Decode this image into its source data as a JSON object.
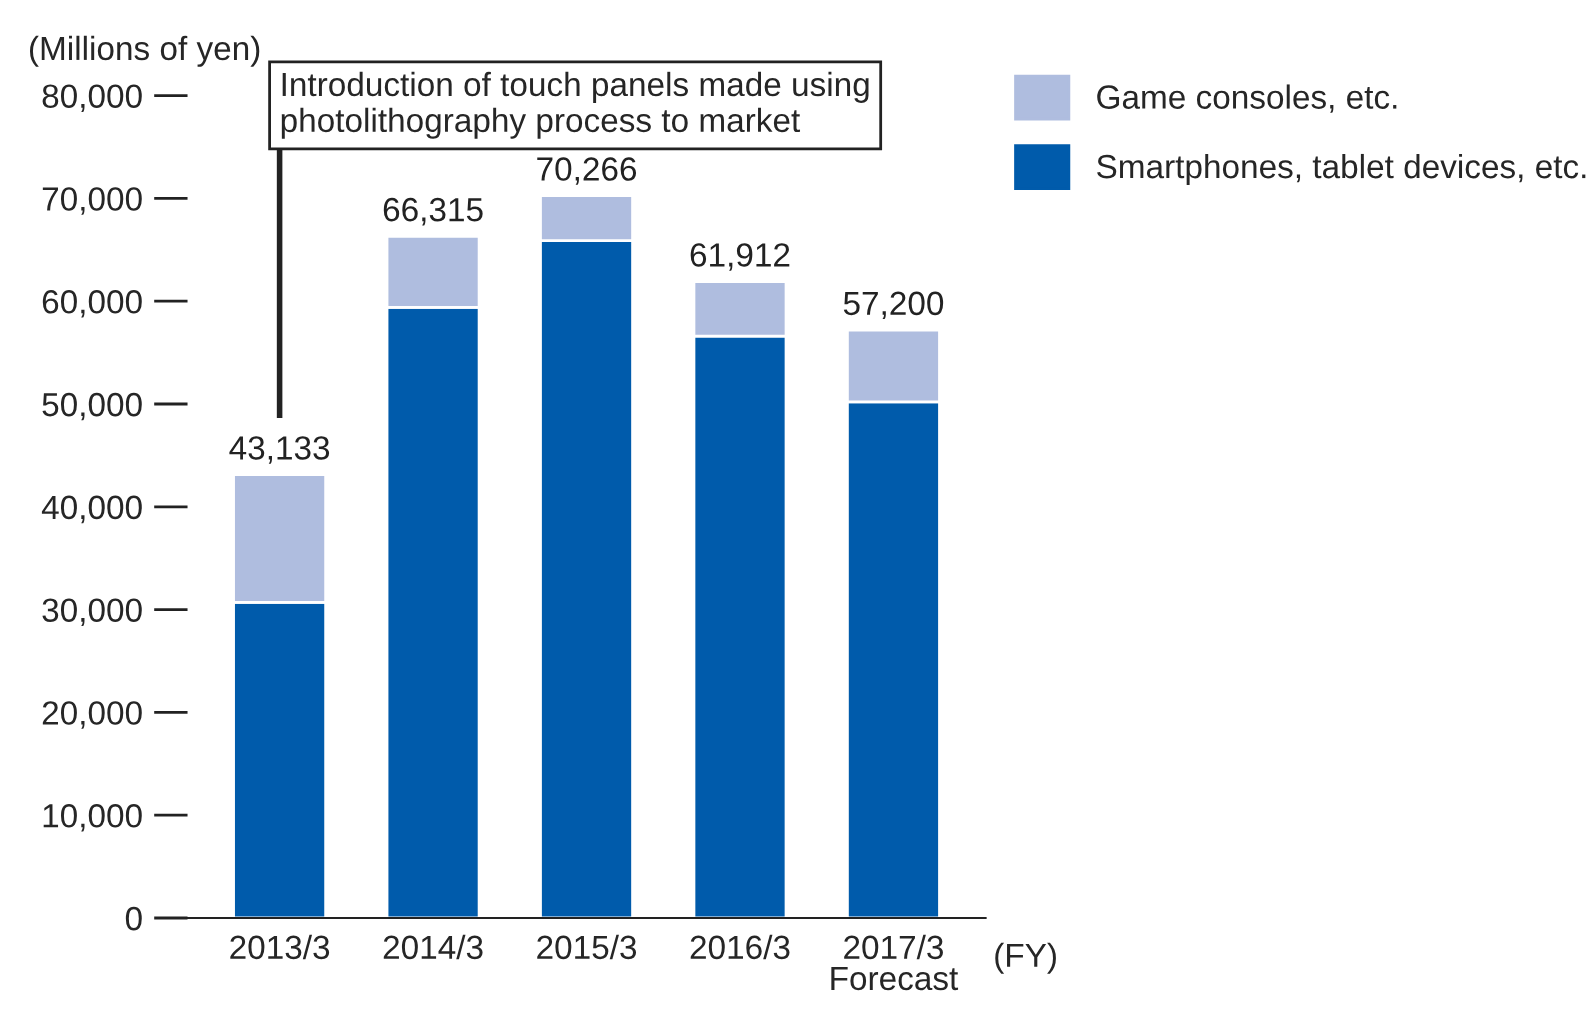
{
  "chart_data": {
    "type": "bar",
    "stacked": true,
    "categories": [
      "2013/3",
      "2014/3",
      "2015/3",
      "2016/3",
      "2017/3\nForecast"
    ],
    "series": [
      {
        "name": "Smartphones, tablet devices, etc.",
        "color": "#005bab",
        "values": [
          30700,
          59400,
          65900,
          56600,
          50200
        ]
      },
      {
        "name": "Game consoles, etc.",
        "color": "#afbddf",
        "values": [
          12433,
          6915,
          4366,
          5312,
          7000
        ]
      }
    ],
    "totals": [
      "43,133",
      "66,315",
      "70,266",
      "61,912",
      "57,200"
    ],
    "ylabel": "(Millions of yen)",
    "xlabel": "(FY)",
    "ylim": [
      0,
      80000
    ],
    "yticks": [
      {
        "value": 0,
        "label": "0"
      },
      {
        "value": 10000,
        "label": "10,000"
      },
      {
        "value": 20000,
        "label": "20,000"
      },
      {
        "value": 30000,
        "label": "30,000"
      },
      {
        "value": 40000,
        "label": "40,000"
      },
      {
        "value": 50000,
        "label": "50,000"
      },
      {
        "value": 60000,
        "label": "60,000"
      },
      {
        "value": 70000,
        "label": "70,000"
      },
      {
        "value": 80000,
        "label": "80,000"
      }
    ],
    "annotations": [
      "Introduction of touch panels made using\nphotolithography process to market"
    ],
    "legend": "top right",
    "grid": false
  }
}
